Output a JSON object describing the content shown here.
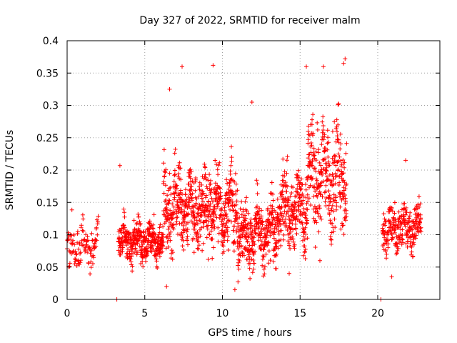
{
  "chart_data": {
    "type": "scatter",
    "title": "Day 327 of 2022, SRMTID for receiver malm",
    "xlabel": "GPS time / hours",
    "ylabel": "SRMTID / TECUs",
    "xlim": [
      0,
      24
    ],
    "ylim": [
      0,
      0.4
    ],
    "xticks": [
      0,
      5,
      10,
      15,
      20
    ],
    "xtick_labels": [
      "0",
      "5",
      "10",
      "15",
      "20"
    ],
    "yticks": [
      0,
      0.05,
      0.1,
      0.15,
      0.2,
      0.25,
      0.3,
      0.35,
      0.4
    ],
    "ytick_labels": [
      "0",
      "0.05",
      "0.1",
      "0.15",
      "0.2",
      "0.25",
      "0.3",
      "0.35",
      "0.4"
    ],
    "grid": true,
    "marker": "+",
    "colors": {
      "points": "#ff0000",
      "grid": "#a0a0a0",
      "axes": "#000000"
    },
    "segments": [
      {
        "t_start": 0.0,
        "t_end": 2.0,
        "base": 0.085,
        "spread": 0.035,
        "step": 0.018
      },
      {
        "t_start": 3.3,
        "t_end": 6.2,
        "base": 0.09,
        "spread": 0.03,
        "step": 0.008
      },
      {
        "t_start": 6.2,
        "t_end": 9.0,
        "base": 0.14,
        "spread": 0.06,
        "step": 0.008
      },
      {
        "t_start": 9.0,
        "t_end": 11.0,
        "base": 0.14,
        "spread": 0.06,
        "step": 0.008
      },
      {
        "t_start": 11.0,
        "t_end": 13.5,
        "base": 0.1,
        "spread": 0.05,
        "step": 0.008
      },
      {
        "t_start": 13.5,
        "t_end": 15.5,
        "base": 0.14,
        "spread": 0.06,
        "step": 0.008
      },
      {
        "t_start": 15.5,
        "t_end": 18.0,
        "base": 0.19,
        "spread": 0.08,
        "step": 0.008
      },
      {
        "t_start": 20.3,
        "t_end": 22.8,
        "base": 0.11,
        "spread": 0.035,
        "step": 0.01
      }
    ],
    "outliers": [
      [
        3.2,
        0.0
      ],
      [
        20.2,
        0.0
      ],
      [
        7.4,
        0.36
      ],
      [
        9.4,
        0.362
      ],
      [
        17.9,
        0.372
      ],
      [
        17.8,
        0.365
      ],
      [
        15.4,
        0.36
      ],
      [
        16.5,
        0.36
      ],
      [
        6.6,
        0.325
      ],
      [
        11.9,
        0.305
      ],
      [
        6.4,
        0.02
      ],
      [
        10.8,
        0.015
      ],
      [
        14.3,
        0.04
      ],
      [
        20.9,
        0.035
      ],
      [
        3.4,
        0.207
      ],
      [
        21.8,
        0.215
      ]
    ]
  }
}
